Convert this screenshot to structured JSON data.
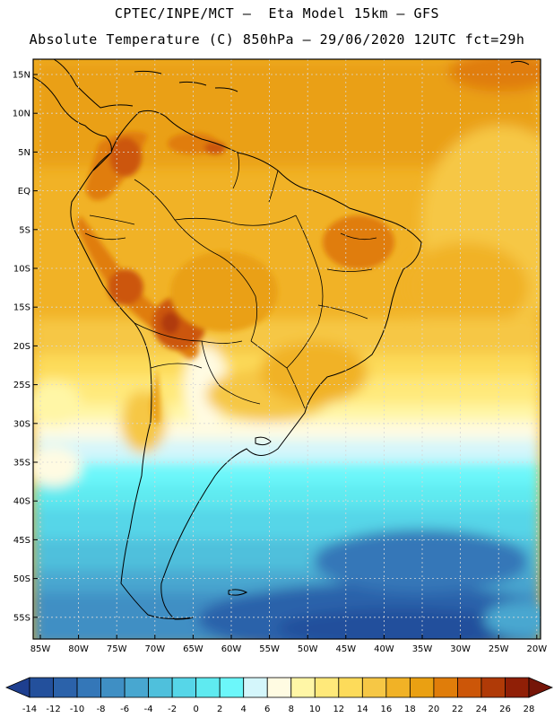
{
  "header": {
    "line1": "CPTEC/INPE/MCT –  Eta Model 15km – GFS",
    "line2": "Absolute Temperature (C) 850hPa – 29/06/2020 12UTC fct=29h"
  },
  "lat_labels": [
    "15N",
    "10N",
    "5N",
    "EQ",
    "5S",
    "10S",
    "15S",
    "20S",
    "25S",
    "30S",
    "35S",
    "40S",
    "45S",
    "50S",
    "55S"
  ],
  "lon_labels": [
    "85W",
    "80W",
    "75W",
    "70W",
    "65W",
    "60W",
    "55W",
    "50W",
    "45W",
    "40W",
    "35W",
    "30W",
    "25W",
    "20W"
  ],
  "colorbar": {
    "labels": [
      "-14",
      "-12",
      "-10",
      "-8",
      "-6",
      "-4",
      "-2",
      "0",
      "2",
      "4",
      "6",
      "8",
      "10",
      "12",
      "14",
      "16",
      "18",
      "20",
      "22",
      "24",
      "26",
      "28"
    ],
    "colors": [
      "#1e3f8f",
      "#23509c",
      "#2b62aa",
      "#3477b8",
      "#3f8fc4",
      "#48a7d0",
      "#4fc0dc",
      "#56d6e8",
      "#5feaf0",
      "#6cf7fa",
      "#d4f6fb",
      "#fffbe2",
      "#fff6a6",
      "#ffe97a",
      "#fddb5a",
      "#f6c745",
      "#f1b226",
      "#eaa012",
      "#e07d0a",
      "#cc5608",
      "#b03a07",
      "#901f06",
      "#751508"
    ]
  },
  "map": {
    "land_color": "#000000",
    "grid_color": "#d8d8d8"
  }
}
